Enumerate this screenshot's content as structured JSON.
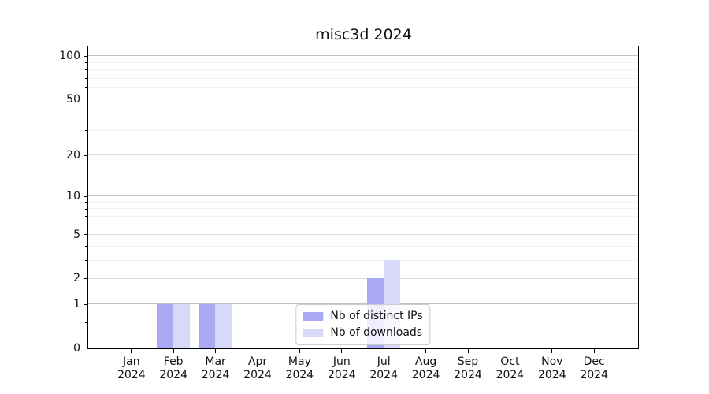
{
  "title": "misc3d 2024",
  "chart_data": {
    "type": "bar",
    "title": "misc3d 2024",
    "year": "2024",
    "months": [
      "Jan",
      "Feb",
      "Mar",
      "Apr",
      "May",
      "Jun",
      "Jul",
      "Aug",
      "Sep",
      "Oct",
      "Nov",
      "Dec"
    ],
    "series": [
      {
        "name": "Nb of distinct IPs",
        "color": "#a9a9f6",
        "values": [
          0,
          1,
          1,
          0,
          0,
          0,
          2,
          0,
          0,
          0,
          0,
          0
        ]
      },
      {
        "name": "Nb of downloads",
        "color": "#d8d8f9",
        "values": [
          0,
          1,
          1,
          0,
          0,
          0,
          3,
          0,
          0,
          0,
          0,
          0
        ]
      }
    ],
    "yscale": "log1p",
    "ylim": [
      0,
      116
    ],
    "y_major_ticks": [
      0,
      1,
      2,
      5,
      10,
      20,
      50,
      100
    ],
    "y_minor_ticks": [
      0.5,
      3,
      4,
      6,
      7,
      8,
      9,
      15,
      30,
      40,
      60,
      70,
      80,
      90
    ],
    "y_minor_gridlines": [
      3,
      4,
      6,
      7,
      8,
      9,
      30,
      40,
      60,
      70,
      80,
      90
    ],
    "grid": "on",
    "legend_position": "lower center",
    "colors": {
      "bar_distinct_ips": "#a9a9f6",
      "bar_downloads": "#d8d8f9",
      "grid_decade": "#c2c2c2",
      "grid_major": "#dedede",
      "grid_minor": "#f0f0f0",
      "axis": "#000000",
      "legend_border": "#cccccc"
    }
  }
}
